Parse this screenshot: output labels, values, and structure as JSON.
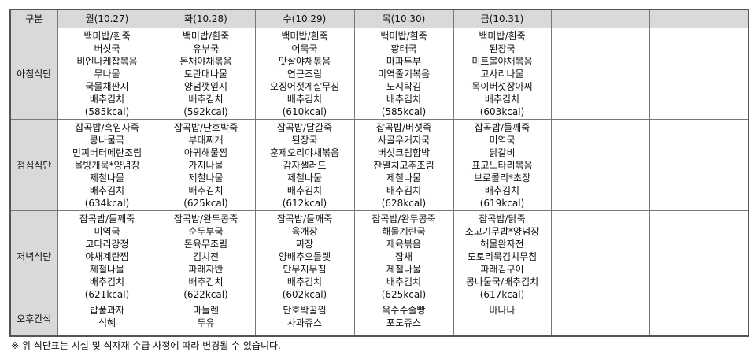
{
  "header": {
    "corner": "구분",
    "days": [
      "월(10.27)",
      "화(10.28)",
      "수(10.29)",
      "목(10.30)",
      "금(10.31)",
      "",
      ""
    ]
  },
  "rows": [
    {
      "label": "아침식단",
      "type": "meal",
      "cells": [
        [
          "백미밥/흰죽",
          "버섯국",
          "비엔나케찹볶음",
          "무나물",
          "국물채짠지",
          "배추김치",
          "(585kcal)"
        ],
        [
          "백미밥/흰죽",
          "유부국",
          "돈채야채볶음",
          "토란대나물",
          "양념깻잎지",
          "배추김치",
          "(592kcal)"
        ],
        [
          "백미밥/흰죽",
          "어묵국",
          "맛살야채볶음",
          "연근조림",
          "오징어젓게살무침",
          "배추김치",
          "(610kcal)"
        ],
        [
          "백미밥/흰죽",
          "황태국",
          "마파두부",
          "미역줄기볶음",
          "도시락김",
          "배추김치",
          "(585kcal)"
        ],
        [
          "백미밥/흰죽",
          "된장국",
          "미트볼야채볶음",
          "고사리나물",
          "목이버섯장아찌",
          "배추김치",
          "(603kcal)"
        ],
        [],
        []
      ]
    },
    {
      "label": "점심식단",
      "type": "meal",
      "cells": [
        [
          "잡곡밥/흑임자죽",
          "콩나물국",
          "민찌버터메란조림",
          "올방개묵*양념장",
          "제철나물",
          "배추김치",
          "(634kcal)"
        ],
        [
          "잡곡밥/단호박죽",
          "부대찌개",
          "아귀해물찜",
          "가지나물",
          "제철나물",
          "배추김치",
          "(625kcal)"
        ],
        [
          "잡곡밥/달걀죽",
          "된장국",
          "훈제오리야채볶음",
          "감자샐러드",
          "제철나물",
          "배추김치",
          "(612kcal)"
        ],
        [
          "잡곡밥/버섯죽",
          "사골우거지국",
          "버섯크림함박",
          "잔멸치고추조림",
          "제철나물",
          "배추김치",
          "(628kcal)"
        ],
        [
          "잡곡밥/들깨죽",
          "미역국",
          "닭갈비",
          "표고느타리볶음",
          "브로콜리*초장",
          "배추김치",
          "(619kcal)"
        ],
        [],
        []
      ]
    },
    {
      "label": "저녁식단",
      "type": "meal",
      "cells": [
        [
          "잡곡밥/들깨죽",
          "미역국",
          "코다리강정",
          "야채계란찜",
          "제철나물",
          "배추김치",
          "(621kcal)"
        ],
        [
          "잡곡밥/완두콩죽",
          "순두부국",
          "돈육무조림",
          "김치전",
          "파래자반",
          "배추김치",
          "(622kcal)"
        ],
        [
          "잡곡밥/들깨죽",
          "육개장",
          "짜장",
          "양배추오믈렛",
          "단무지무침",
          "배추김치",
          "(602kcal)"
        ],
        [
          "잡곡밥/완두콩죽",
          "해물계란국",
          "제육볶음",
          "잡채",
          "제철나물",
          "배추김치",
          "(625kcal)"
        ],
        [
          "잡곡밥/닭죽",
          "소고기무밥*양념장",
          "해물완자전",
          "도토리묵김치무침",
          "파래김구이",
          "콩나물국/배추김치",
          "(617kcal)"
        ],
        [],
        []
      ]
    },
    {
      "label": "오후간식",
      "type": "snack",
      "cells": [
        [
          "밥풀과자",
          "식혜"
        ],
        [
          "마들렌",
          "두유"
        ],
        [
          "단호박꿀찜",
          "사과쥬스"
        ],
        [
          "옥수수술빵",
          "포도쥬스"
        ],
        [
          "바나나"
        ],
        [],
        []
      ]
    }
  ],
  "footnote": "※ 위 식단표는 시설 및 식자재 수급 사정에 따라 변경될 수 있습니다."
}
